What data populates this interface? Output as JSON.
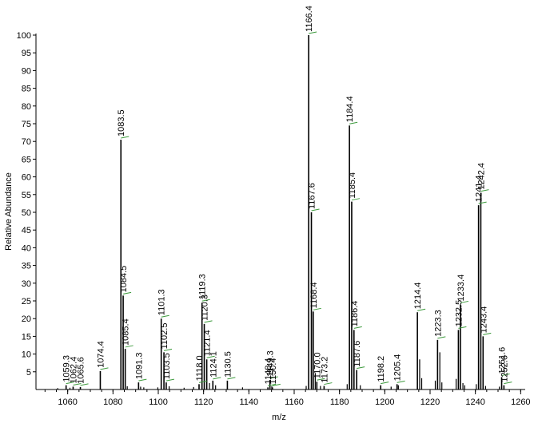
{
  "chart_data": {
    "type": "bar",
    "xlabel": "m/z",
    "ylabel": "Relative Abundance",
    "xlim": [
      1046,
      1262
    ],
    "ylim": [
      0,
      100
    ],
    "x_ticks": [
      1060,
      1080,
      1100,
      1120,
      1140,
      1160,
      1180,
      1200,
      1220,
      1240,
      1260
    ],
    "y_ticks": [
      5,
      10,
      15,
      20,
      25,
      30,
      35,
      40,
      45,
      50,
      55,
      60,
      65,
      70,
      75,
      80,
      85,
      90,
      95,
      100
    ],
    "peaks": [
      {
        "mz": 1062.4,
        "intensity": 0.8,
        "label": "1062.4"
      },
      {
        "mz": 1059.3,
        "intensity": 1.2,
        "label": "1059.3"
      },
      {
        "mz": 1065.6,
        "intensity": 0.7,
        "label": "1065.6"
      },
      {
        "mz": 1074.4,
        "intensity": 5.2,
        "label": "1074.4"
      },
      {
        "mz": 1083.5,
        "intensity": 70.5,
        "label": "1083.5"
      },
      {
        "mz": 1084.5,
        "intensity": 26.5,
        "label": "1084.5"
      },
      {
        "mz": 1085.4,
        "intensity": 11.5,
        "label": "1085.4"
      },
      {
        "mz": 1091.3,
        "intensity": 2.0,
        "label": "1091.3"
      },
      {
        "mz": 1101.3,
        "intensity": 20.0,
        "label": "1101.3"
      },
      {
        "mz": 1102.5,
        "intensity": 10.5,
        "label": "1102.5"
      },
      {
        "mz": 1103.5,
        "intensity": 2.0,
        "label": "1103.5"
      },
      {
        "mz": 1118.0,
        "intensity": 1.5,
        "label": "1118.0"
      },
      {
        "mz": 1119.3,
        "intensity": 24.5,
        "label": "1119.3"
      },
      {
        "mz": 1120.3,
        "intensity": 18.5,
        "label": "1120.3"
      },
      {
        "mz": 1121.4,
        "intensity": 8.5,
        "label": "1121.4"
      },
      {
        "mz": 1124.1,
        "intensity": 2.5,
        "label": "1124.1"
      },
      {
        "mz": 1130.5,
        "intensity": 2.5,
        "label": "1130.5"
      },
      {
        "mz": 1149.3,
        "intensity": 2.7,
        "label": "1149.3"
      },
      {
        "mz": 1148.4,
        "intensity": 0.6,
        "label": "1148.4"
      },
      {
        "mz": 1150.4,
        "intensity": 0.6,
        "label": "1150.4"
      },
      {
        "mz": 1166.4,
        "intensity": 100,
        "label": "1166.4"
      },
      {
        "mz": 1167.6,
        "intensity": 50.0,
        "label": "1167.6"
      },
      {
        "mz": 1168.4,
        "intensity": 22.0,
        "label": "1168.4"
      },
      {
        "mz": 1170.0,
        "intensity": 2.2,
        "label": "1170.0"
      },
      {
        "mz": 1173.2,
        "intensity": 1.0,
        "label": "1173.2"
      },
      {
        "mz": 1184.4,
        "intensity": 74.5,
        "label": "1184.4"
      },
      {
        "mz": 1185.4,
        "intensity": 53.0,
        "label": "1185.4"
      },
      {
        "mz": 1186.4,
        "intensity": 16.8,
        "label": "1186.4"
      },
      {
        "mz": 1187.6,
        "intensity": 5.5,
        "label": "1187.6"
      },
      {
        "mz": 1198.2,
        "intensity": 1.2,
        "label": "1198.2"
      },
      {
        "mz": 1205.4,
        "intensity": 1.5,
        "label": "1205.4"
      },
      {
        "mz": 1214.4,
        "intensity": 21.8,
        "label": "1214.4"
      },
      {
        "mz": 1223.3,
        "intensity": 14.0,
        "label": "1223.3"
      },
      {
        "mz": 1232.5,
        "intensity": 16.8,
        "label": "1232.5"
      },
      {
        "mz": 1233.4,
        "intensity": 24.0,
        "label": "1233.4"
      },
      {
        "mz": 1241.4,
        "intensity": 52.0,
        "label": "1241.4"
      },
      {
        "mz": 1242.4,
        "intensity": 55.5,
        "label": "1242.4"
      },
      {
        "mz": 1243.4,
        "intensity": 15.0,
        "label": "1243.4"
      },
      {
        "mz": 1251.6,
        "intensity": 3.5,
        "label": "1251.6"
      },
      {
        "mz": 1252.6,
        "intensity": 1.2,
        "label": "1252.6"
      }
    ],
    "minor_peaks": [
      {
        "mz": 1055.6,
        "intensity": 0.4
      },
      {
        "mz": 1061.0,
        "intensity": 0.5
      },
      {
        "mz": 1086.3,
        "intensity": 0.9
      },
      {
        "mz": 1092.2,
        "intensity": 0.8
      },
      {
        "mz": 1093.6,
        "intensity": 0.6
      },
      {
        "mz": 1099.8,
        "intensity": 0.6
      },
      {
        "mz": 1104.8,
        "intensity": 0.9
      },
      {
        "mz": 1111.4,
        "intensity": 0.5
      },
      {
        "mz": 1115.6,
        "intensity": 0.7
      },
      {
        "mz": 1122.6,
        "intensity": 1.8
      },
      {
        "mz": 1125.3,
        "intensity": 1.2
      },
      {
        "mz": 1137.2,
        "intensity": 0.6
      },
      {
        "mz": 1150.1,
        "intensity": 0.9
      },
      {
        "mz": 1165.3,
        "intensity": 1.0
      },
      {
        "mz": 1169.3,
        "intensity": 4.5
      },
      {
        "mz": 1171.6,
        "intensity": 1.0
      },
      {
        "mz": 1183.4,
        "intensity": 1.5
      },
      {
        "mz": 1189.2,
        "intensity": 1.2
      },
      {
        "mz": 1202.8,
        "intensity": 0.8
      },
      {
        "mz": 1206.0,
        "intensity": 1.2
      },
      {
        "mz": 1215.4,
        "intensity": 8.5
      },
      {
        "mz": 1216.3,
        "intensity": 3.2
      },
      {
        "mz": 1222.3,
        "intensity": 2.5
      },
      {
        "mz": 1224.3,
        "intensity": 10.5
      },
      {
        "mz": 1225.2,
        "intensity": 2.0
      },
      {
        "mz": 1231.5,
        "intensity": 3.0
      },
      {
        "mz": 1234.5,
        "intensity": 1.8
      },
      {
        "mz": 1235.3,
        "intensity": 1.2
      },
      {
        "mz": 1240.4,
        "intensity": 1.5
      },
      {
        "mz": 1244.5,
        "intensity": 1.0
      },
      {
        "mz": 1250.6,
        "intensity": 0.8
      }
    ]
  }
}
